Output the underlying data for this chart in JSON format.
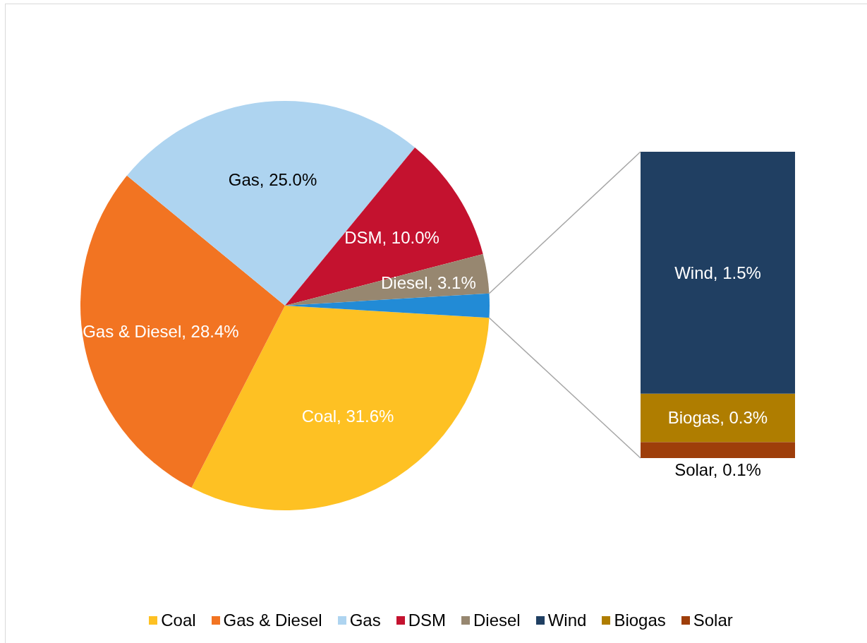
{
  "chart_data": [
    {
      "type": "pie",
      "categories": [
        "Coal",
        "Gas & Diesel",
        "Gas",
        "DSM",
        "Diesel",
        null
      ],
      "values": [
        31.6,
        28.4,
        25.0,
        10.0,
        3.1,
        1.9
      ],
      "colors": [
        "#fec123",
        "#f27422",
        "#aed4f0",
        "#c4122f",
        "#978770",
        "#228bd6"
      ],
      "value_labels": [
        "Coal, 31.6%",
        "Gas & Diesel, 28.4%",
        "Gas, 25.0%",
        "DSM, 10.0%",
        "Diesel, 3.1%",
        null
      ],
      "legend": "bottom"
    },
    {
      "type": "bar",
      "stacked": true,
      "categories": [
        null
      ],
      "series": [
        {
          "name": "Solar",
          "color": "#9e3e0a",
          "values": [
            0.1
          ],
          "value_labels": [
            "Solar, 0.1%"
          ]
        },
        {
          "name": "Biogas",
          "color": "#af7d00",
          "values": [
            0.3
          ],
          "value_labels": [
            "Biogas, 0.3%"
          ]
        },
        {
          "name": "Wind",
          "color": "#203f62",
          "values": [
            1.5
          ],
          "value_labels": [
            "Wind, 1.5%"
          ]
        }
      ],
      "legend": "bottom"
    }
  ]
}
